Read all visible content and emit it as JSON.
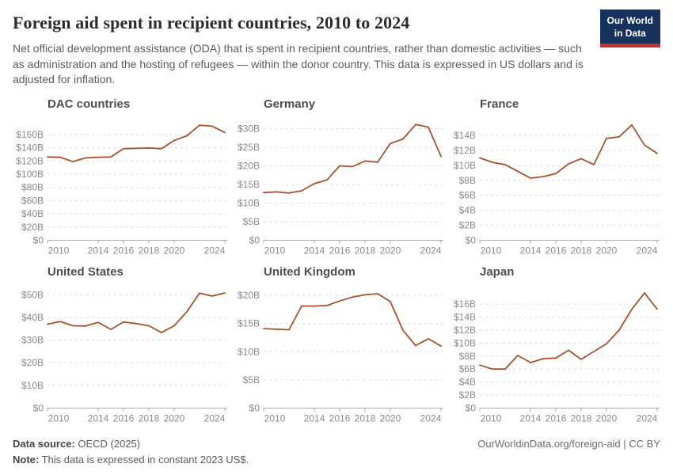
{
  "header": {
    "title": "Foreign aid spent in recipient countries, 2010 to 2024",
    "subtitle": "Net official development assistance (ODA) that is spent in recipient countries, rather than domestic activities — such as administration and the hosting of refugees — within the donor country. This data is expressed in US dollars and is adjusted for inflation.",
    "logo_line1": "Our World",
    "logo_line2": "in Data"
  },
  "footer": {
    "source_label": "Data source:",
    "source_value": " OECD (2025)",
    "note_label": "Note:",
    "note_value": " This data is expressed in constant 2023 US$.",
    "link": "OurWorldinData.org/foreign-aid | CC BY"
  },
  "colors": {
    "line": "#a6512c",
    "grid": "#dcdcdc",
    "axis": "#ababab",
    "tick_text": "#8a8a8a",
    "logo_bg": "#16325c",
    "logo_bar": "#c1352b"
  },
  "chart_data": {
    "type": "line",
    "x": [
      2010,
      2011,
      2012,
      2013,
      2014,
      2015,
      2016,
      2017,
      2018,
      2019,
      2020,
      2021,
      2022,
      2023,
      2024
    ],
    "x_ticks": [
      2010,
      2014,
      2016,
      2018,
      2020,
      2024
    ],
    "y_prefix": "$",
    "y_suffix": "B",
    "grid": true,
    "series": [
      {
        "name": "DAC countries",
        "values": [
          126,
          125.5,
          119,
          124.5,
          125.5,
          126,
          138.5,
          139,
          139.5,
          138.5,
          151,
          158,
          174,
          172.5,
          163
        ],
        "yticks": [
          20,
          40,
          60,
          80,
          100,
          120,
          140,
          160
        ],
        "ymax": 179
      },
      {
        "name": "Germany",
        "values": [
          12.8,
          13,
          12.7,
          13.3,
          15.2,
          16.2,
          20,
          19.8,
          21.3,
          21,
          26,
          27.2,
          31.1,
          30.4,
          22.5
        ],
        "yticks": [
          5,
          10,
          15,
          20,
          25,
          30
        ],
        "ymax": 31.8
      },
      {
        "name": "France",
        "values": [
          11,
          10.4,
          10.1,
          9.2,
          8.3,
          8.5,
          8.9,
          10.2,
          10.9,
          10.1,
          13.6,
          13.8,
          15.4,
          12.7,
          11.6
        ],
        "yticks": [
          2,
          4,
          6,
          8,
          10,
          12,
          14
        ],
        "ymax": 15.8
      },
      {
        "name": "United States",
        "values": [
          37,
          38.2,
          36.3,
          36.2,
          37.8,
          34.7,
          38,
          37.3,
          36.3,
          33.3,
          36.3,
          42.5,
          50.7,
          49.4,
          50.8
        ],
        "yticks": [
          10,
          20,
          30,
          40,
          50
        ],
        "ymax": 52.2
      },
      {
        "name": "United Kingdom",
        "values": [
          14.1,
          14,
          13.9,
          18.1,
          18.1,
          18.2,
          19,
          19.7,
          20.1,
          20.3,
          18.9,
          13.8,
          11.1,
          12.3,
          11
        ],
        "yticks": [
          5,
          10,
          15,
          20
        ],
        "ymax": 21
      },
      {
        "name": "Japan",
        "values": [
          6.6,
          6,
          6,
          8.1,
          7,
          7.6,
          7.7,
          8.9,
          7.5,
          8.7,
          9.9,
          12,
          15.2,
          17.7,
          15.2
        ],
        "yticks": [
          2,
          4,
          6,
          8,
          10,
          12,
          14,
          16
        ],
        "ymax": 18.2
      }
    ]
  }
}
